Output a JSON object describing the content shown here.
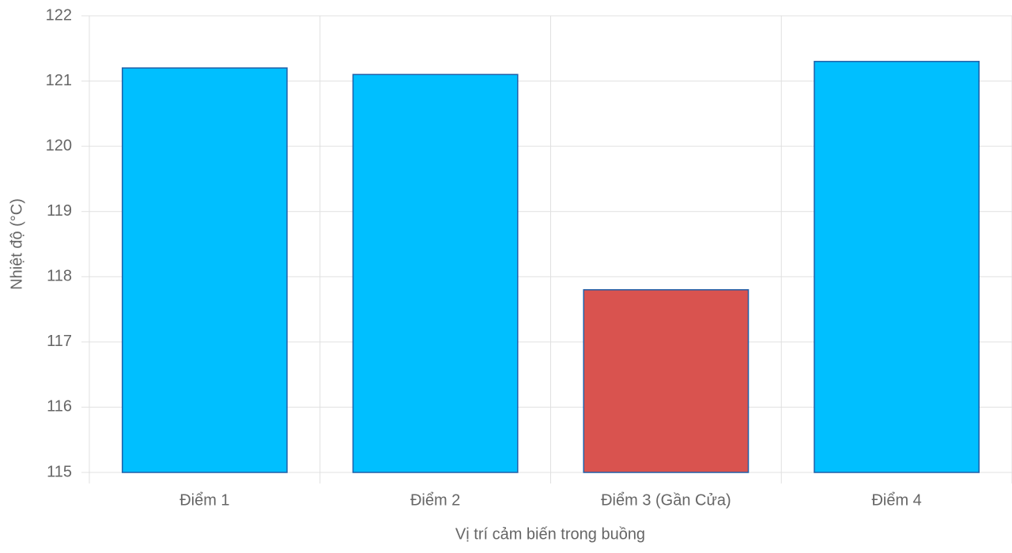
{
  "chart_data": {
    "type": "bar",
    "categories": [
      "Điểm 1",
      "Điểm 2",
      "Điểm 3 (Gần Cửa)",
      "Điểm 4"
    ],
    "values": [
      121.2,
      121.1,
      117.8,
      121.3
    ],
    "colors": [
      "#00bfff",
      "#00bfff",
      "#d9534f",
      "#00bfff"
    ],
    "border_color": "#1f5fa8",
    "xlabel": "Vị trí cảm biến trong buồng",
    "ylabel": "Nhiệt độ (°C)",
    "ylim": [
      115,
      122
    ],
    "yticks": [
      115,
      116,
      117,
      118,
      119,
      120,
      121,
      122
    ],
    "grid": true
  }
}
